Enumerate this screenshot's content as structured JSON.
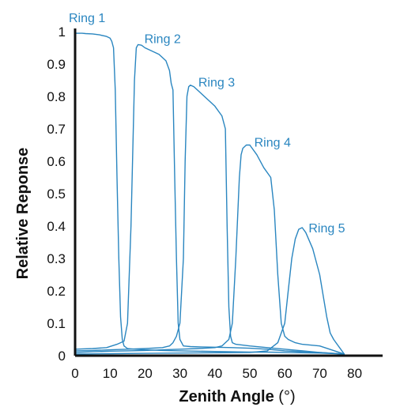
{
  "chart_data": {
    "type": "line",
    "xlabel_bold": "Zenith Angle",
    "xlabel_unit": " (°)",
    "ylabel": "Relative Reponse",
    "xlim": [
      0,
      88
    ],
    "ylim": [
      0,
      1
    ],
    "x_ticks": [
      "0",
      "10",
      "20",
      "30",
      "40",
      "50",
      "60",
      "70",
      "80"
    ],
    "y_ticks": [
      "0",
      "0.1",
      "0.2",
      "0.3",
      "0.4",
      "0.5",
      "0.6",
      "0.7",
      "0.8",
      "0.9",
      "1"
    ],
    "grid": false,
    "line_color": "#2a86c0",
    "series": [
      {
        "name": "Ring 1",
        "x": [
          0,
          1,
          2,
          3,
          5,
          7,
          9,
          10,
          10.5,
          11,
          11.5,
          12,
          12.5,
          13,
          13.5,
          14,
          15,
          17,
          20,
          25,
          30,
          35,
          40,
          45,
          50,
          55,
          60,
          70,
          77
        ],
        "y": [
          0.995,
          0.995,
          0.995,
          0.994,
          0.993,
          0.99,
          0.985,
          0.98,
          0.97,
          0.95,
          0.82,
          0.55,
          0.3,
          0.12,
          0.05,
          0.03,
          0.022,
          0.02,
          0.018,
          0.016,
          0.015,
          0.014,
          0.013,
          0.012,
          0.011,
          0.011,
          0.01,
          0.008,
          0.005
        ]
      },
      {
        "name": "Ring 2",
        "x": [
          0,
          5,
          9,
          10.5,
          12,
          13,
          14,
          15,
          16,
          17,
          17.5,
          18,
          19,
          20,
          22,
          24,
          26,
          27,
          27.5,
          28,
          28.5,
          29,
          29.5,
          30,
          31,
          33,
          36,
          40,
          45,
          50,
          55,
          60,
          70,
          77
        ],
        "y": [
          0.02,
          0.022,
          0.025,
          0.03,
          0.035,
          0.04,
          0.045,
          0.1,
          0.4,
          0.85,
          0.95,
          0.96,
          0.958,
          0.95,
          0.94,
          0.93,
          0.91,
          0.88,
          0.84,
          0.82,
          0.55,
          0.3,
          0.1,
          0.05,
          0.03,
          0.028,
          0.027,
          0.026,
          0.025,
          0.023,
          0.02,
          0.015,
          0.01,
          0.005
        ]
      },
      {
        "name": "Ring 3",
        "x": [
          0,
          5,
          10,
          15,
          20,
          25,
          27,
          28,
          29,
          30,
          31,
          31.5,
          32,
          32.5,
          33,
          34,
          36,
          38,
          40,
          42,
          43,
          43.5,
          44,
          44.5,
          45,
          46,
          50,
          55,
          60,
          70,
          77
        ],
        "y": [
          0.015,
          0.016,
          0.018,
          0.02,
          0.022,
          0.025,
          0.03,
          0.04,
          0.06,
          0.1,
          0.3,
          0.6,
          0.8,
          0.83,
          0.835,
          0.83,
          0.81,
          0.79,
          0.77,
          0.74,
          0.7,
          0.4,
          0.15,
          0.06,
          0.04,
          0.035,
          0.03,
          0.025,
          0.02,
          0.01,
          0.005
        ]
      },
      {
        "name": "Ring 4",
        "x": [
          0,
          5,
          10,
          15,
          20,
          25,
          30,
          35,
          40,
          42,
          44,
          45,
          46,
          47,
          47.5,
          48,
          49,
          50,
          52,
          54,
          56,
          57,
          58,
          59,
          60,
          61,
          63,
          65,
          70,
          77
        ],
        "y": [
          0.01,
          0.012,
          0.014,
          0.015,
          0.016,
          0.018,
          0.02,
          0.022,
          0.025,
          0.03,
          0.05,
          0.1,
          0.3,
          0.55,
          0.62,
          0.64,
          0.65,
          0.65,
          0.62,
          0.58,
          0.55,
          0.45,
          0.25,
          0.1,
          0.06,
          0.05,
          0.04,
          0.035,
          0.03,
          0.005
        ]
      },
      {
        "name": "Ring 5",
        "x": [
          0,
          10,
          20,
          30,
          40,
          50,
          55,
          58,
          60,
          61,
          62,
          63,
          64,
          65,
          66,
          68,
          70,
          72,
          73,
          74,
          75,
          76,
          77
        ],
        "y": [
          0.005,
          0.006,
          0.007,
          0.008,
          0.009,
          0.01,
          0.015,
          0.04,
          0.1,
          0.2,
          0.3,
          0.36,
          0.39,
          0.395,
          0.38,
          0.33,
          0.25,
          0.12,
          0.07,
          0.05,
          0.035,
          0.02,
          0.005
        ]
      }
    ]
  }
}
